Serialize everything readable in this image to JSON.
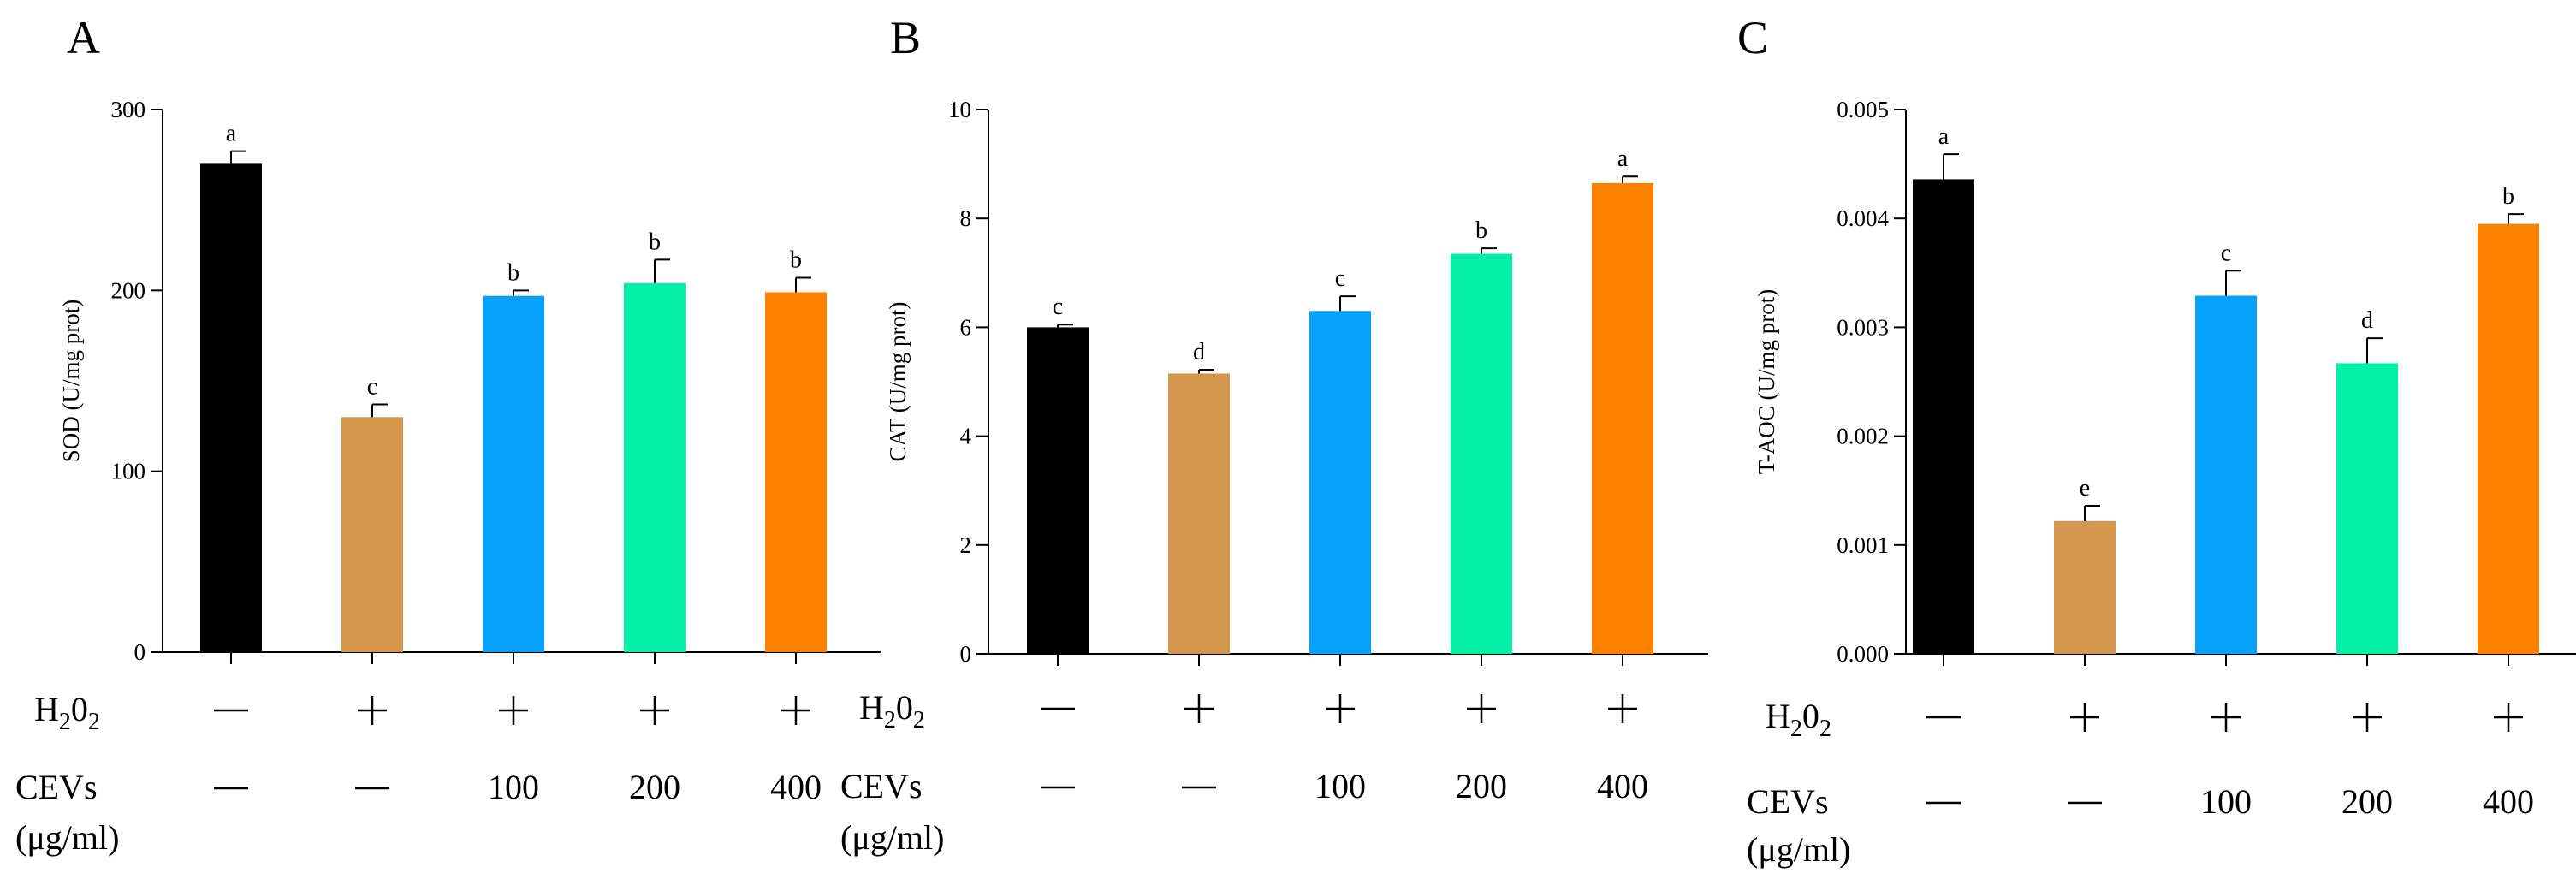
{
  "colors": {
    "bars": [
      "#000000",
      "#d4954c",
      "#07a0fb",
      "#03f0a6",
      "#fe8100"
    ],
    "axis": "#000000"
  },
  "row_labels": {
    "h2o2_main": "H",
    "h2o2_sub1": "2",
    "h2o2_mid": "0",
    "h2o2_sub2": "2",
    "cevs_line1": "CEVs",
    "cevs_line2": "(μg/ml)"
  },
  "chart_data": [
    {
      "panel_label": "A",
      "type": "bar",
      "ylabel": "SOD  (U/mg prot)",
      "ylim": [
        0,
        300
      ],
      "yticks": [
        0,
        100,
        200,
        300
      ],
      "ytick_labels": [
        "0",
        "100",
        "200",
        "300"
      ],
      "categories": [
        "1",
        "2",
        "3",
        "4",
        "5"
      ],
      "values": [
        270,
        130,
        197,
        204,
        199
      ],
      "errors": [
        7,
        7,
        3,
        13,
        8
      ],
      "significance": [
        "a",
        "c",
        "b",
        "b",
        "b"
      ],
      "h2o2": [
        "—",
        "+",
        "+",
        "+",
        "+"
      ],
      "cevs": [
        "—",
        "—",
        "100",
        "200",
        "400"
      ]
    },
    {
      "panel_label": "B",
      "type": "bar",
      "ylabel": "CAT  (U/mg prot)",
      "ylim": [
        0,
        10
      ],
      "yticks": [
        0,
        2,
        4,
        6,
        8,
        10
      ],
      "ytick_labels": [
        "0",
        "2",
        "4",
        "6",
        "8",
        "10"
      ],
      "categories": [
        "1",
        "2",
        "3",
        "4",
        "5"
      ],
      "values": [
        6.0,
        5.15,
        6.3,
        7.35,
        8.65
      ],
      "errors": [
        0.05,
        0.07,
        0.27,
        0.1,
        0.12
      ],
      "significance": [
        "c",
        "d",
        "c",
        "b",
        "a"
      ],
      "h2o2": [
        "—",
        "+",
        "+",
        "+",
        "+"
      ],
      "cevs": [
        "—",
        "—",
        "100",
        "200",
        "400"
      ]
    },
    {
      "panel_label": "C",
      "type": "bar",
      "ylabel": "T-AOC  (U/mg prot)",
      "ylim": [
        0,
        0.005
      ],
      "yticks": [
        0,
        0.001,
        0.002,
        0.003,
        0.004,
        0.005
      ],
      "ytick_labels": [
        "0.000",
        "0.001",
        "0.002",
        "0.003",
        "0.004",
        "0.005"
      ],
      "categories": [
        "1",
        "2",
        "3",
        "4",
        "5"
      ],
      "values": [
        0.00436,
        0.00122,
        0.00329,
        0.00267,
        0.00395
      ],
      "errors": [
        0.00023,
        0.00014,
        0.00023,
        0.00023,
        9e-05
      ],
      "significance": [
        "a",
        "e",
        "c",
        "d",
        "b"
      ],
      "h2o2": [
        "—",
        "+",
        "+",
        "+",
        "+"
      ],
      "cevs": [
        "—",
        "—",
        "100",
        "200",
        "400"
      ]
    }
  ]
}
